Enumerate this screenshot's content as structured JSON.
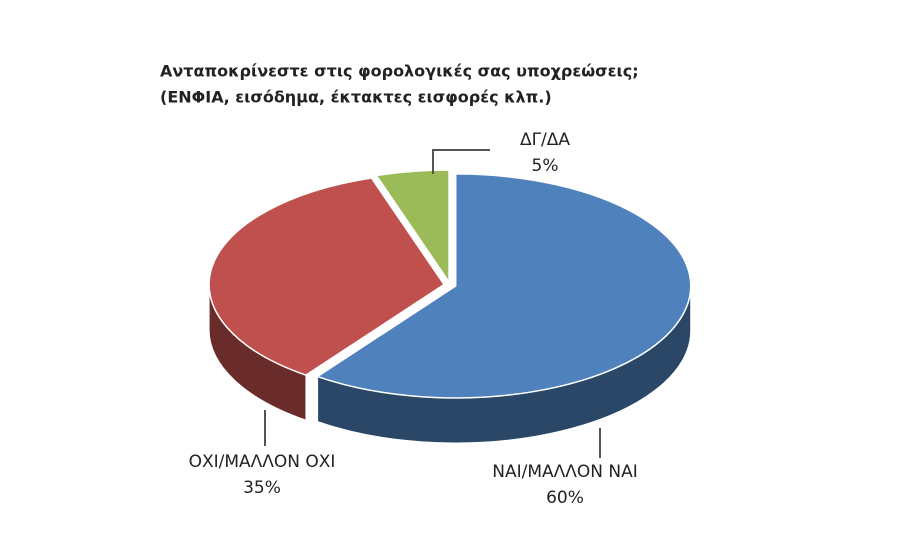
{
  "chart_data": {
    "type": "pie3d",
    "title": "Ανταποκρίνεστε στις φορολογικές σας υποχρεώσεις;",
    "subtitle": "(ΕΝΦΙΑ, εισόδημα, έκτακτες εισφορές κλπ.)",
    "categories": [
      "ΝΑΙ/ΜΑΛΛΟΝ ΝΑΙ",
      "ΟΧΙ/ΜΑΛΛΟΝ ΟΧΙ",
      "ΔΓ/ΔΑ"
    ],
    "values": [
      60,
      35,
      5
    ],
    "value_labels": [
      "60%",
      "35%",
      "5%"
    ],
    "colors": [
      "#4f81bd",
      "#c0504d",
      "#9bbb59"
    ]
  }
}
